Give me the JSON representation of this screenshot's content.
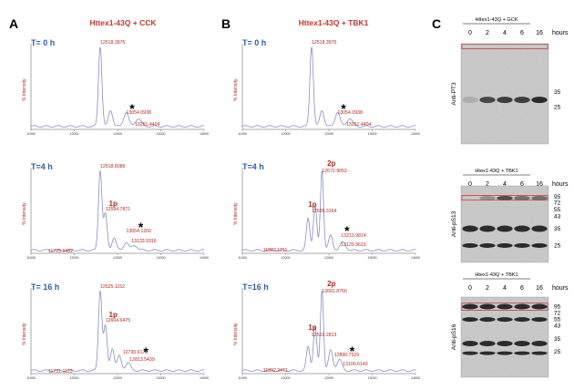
{
  "colors": {
    "title_red": "#c0392b",
    "time_blue": "#2e5fa3",
    "peak_red": "#b5261e",
    "trace": "#8a8fc4",
    "blot_bg": "#cfcfcf",
    "band": "#1a1a1a",
    "box_red": "#d23a3a"
  },
  "panels": {
    "A": {
      "letter": "A",
      "title": "Httex1-43Q + CCK",
      "spectra": [
        {
          "time": "T= 0 h",
          "peaks": [
            "12518.3975",
            "13054.0938",
            "13251.4404"
          ],
          "tags": [],
          "star": "*"
        },
        {
          "time": "T=4 h",
          "peaks": [
            "12518.8086",
            "12594.7871",
            "11725.9482",
            "13054.1260",
            "13133.9316"
          ],
          "tags": [
            "1p"
          ],
          "star": "*"
        },
        {
          "time": "T= 16 h",
          "peaks": [
            "12525.1152",
            "12604.6475",
            "11731.1123",
            "12730.6172",
            "12813.5439"
          ],
          "tags": [
            "1p"
          ],
          "star": "*"
        }
      ]
    },
    "B": {
      "letter": "B",
      "title": "Httex1-43Q + TBK1",
      "spectra": [
        {
          "time": "T= 0 h",
          "peaks": [
            "12518.3975",
            "13054.0938",
            "13251.4404"
          ],
          "tags": [],
          "star": "*"
        },
        {
          "time": "T=4 h",
          "peaks": [
            "12672.9053",
            "12595.3164",
            "11883.1211",
            "13213.9814",
            "13129.9619"
          ],
          "tags": [
            "2p",
            "1p"
          ],
          "star": "*"
        },
        {
          "time": "T=16 h",
          "peaks": [
            "12681.8750",
            "12519.2813",
            "11892.2471",
            "12890.7529",
            "13100.6143"
          ],
          "tags": [
            "2p",
            "1p"
          ],
          "star": "*"
        }
      ]
    },
    "C": {
      "letter": "C",
      "blots": [
        {
          "title": "Httex1-43Q + GCK",
          "lanes": [
            "0",
            "2",
            "4",
            "6",
            "16"
          ],
          "unit": "hours",
          "antibody": "Anti-PT3",
          "markers": [
            "35",
            "25"
          ]
        },
        {
          "title": "Htex1-43Q + TBK1",
          "lanes": [
            "0",
            "2",
            "4",
            "6",
            "16"
          ],
          "unit": "hours",
          "antibody": "Anti-pS13",
          "markers": [
            "95",
            "72",
            "55",
            "43",
            "35",
            "25"
          ]
        },
        {
          "title": "Htex1-43Q + TBK1",
          "lanes": [
            "0",
            "2",
            "4",
            "6",
            "16"
          ],
          "unit": "hours",
          "antibody": "Anti-pS16",
          "markers": [
            "95",
            "72",
            "55",
            "43",
            "35",
            "25"
          ]
        }
      ]
    }
  },
  "axis": {
    "ylabel": "% Intensity",
    "ticks": [
      "11000",
      "12000",
      "12000",
      "13000",
      "14000"
    ]
  }
}
